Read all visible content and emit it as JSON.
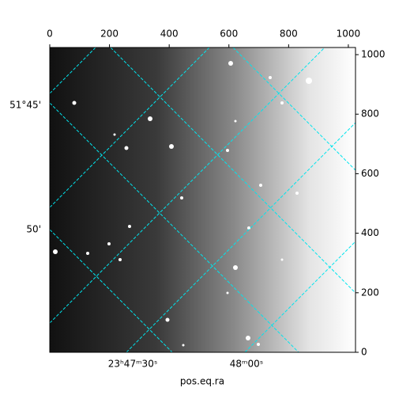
{
  "chart_data": {
    "type": "image",
    "xlim": [
      0,
      1024
    ],
    "xticks": [
      0,
      200,
      400,
      600,
      800,
      1000
    ],
    "ylim": [
      0,
      1024
    ],
    "yticks": [
      0,
      200,
      400,
      600,
      800,
      1000
    ],
    "ra_ticks": [
      "23ʰ47ᵐ30ˢ",
      "48ᵐ00ˢ"
    ],
    "dec_ticks": [
      "51°45'",
      "50'"
    ],
    "xlabel": "pos.eq.ra",
    "grid_color": "#00e5ee"
  }
}
